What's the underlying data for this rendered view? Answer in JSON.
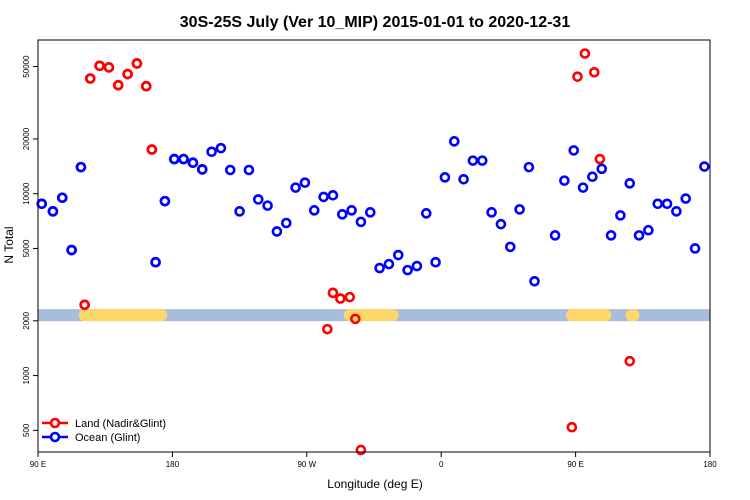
{
  "chart_data": {
    "type": "scatter",
    "title": "30S-25S July (Ver 10_MIP)   2015-01-01 to 2020-12-31",
    "xlabel": "Longitude (deg E)",
    "ylabel": "N Total",
    "x_ticks": [
      "90 E",
      "180",
      "90 W",
      "0",
      "90 E",
      "180"
    ],
    "y_scale": "log",
    "y_ticks": [
      500,
      1000,
      2000,
      5000,
      10000,
      20000,
      50000
    ],
    "ylim": [
      380,
      70000
    ],
    "legend": {
      "position": "bottom-left",
      "entries": [
        {
          "label": "Land (Nadir&Glint)",
          "color": "#ff0000"
        },
        {
          "label": "Ocean (Glint)",
          "color": "#0000ff"
        }
      ]
    },
    "series": [
      {
        "name": "Land (Nadir&Glint)",
        "color": "#ff0000",
        "points": [
          [
            115,
            2450
          ],
          [
            118,
            43000
          ],
          [
            123,
            50500
          ],
          [
            128,
            49500
          ],
          [
            133,
            39500
          ],
          [
            138,
            45500
          ],
          [
            143,
            52000
          ],
          [
            148,
            39000
          ],
          [
            151,
            17500
          ],
          [
            -115,
            1800
          ],
          [
            -112,
            2850
          ],
          [
            -108,
            2650
          ],
          [
            -103,
            2700
          ],
          [
            -100,
            2050
          ],
          [
            -97,
            390
          ],
          [
            16,
            520
          ],
          [
            19,
            44000
          ],
          [
            23,
            59000
          ],
          [
            28,
            46500
          ],
          [
            31,
            15500
          ],
          [
            47,
            1200
          ],
          [
            115,
            2450
          ],
          [
            118,
            43000
          ],
          [
            123,
            50500
          ],
          [
            128,
            49500
          ],
          [
            133,
            39500
          ],
          [
            138,
            45500
          ],
          [
            143,
            52000
          ],
          [
            148,
            39000
          ],
          [
            151,
            17500
          ]
        ]
      },
      {
        "name": "Ocean (Glint)",
        "color": "#0000ff",
        "points": [
          [
            92,
            8800
          ],
          [
            98,
            8000
          ],
          [
            103,
            9500
          ],
          [
            108,
            4900
          ],
          [
            113,
            14000
          ],
          [
            153,
            4200
          ],
          [
            158,
            9100
          ],
          [
            163,
            15500
          ],
          [
            168,
            15500
          ],
          [
            173,
            14800
          ],
          [
            178,
            13600
          ],
          [
            -177,
            17000
          ],
          [
            -172,
            17800
          ],
          [
            -167,
            13500
          ],
          [
            -162,
            8000
          ],
          [
            -157,
            13500
          ],
          [
            -152,
            9300
          ],
          [
            -147,
            8600
          ],
          [
            -142,
            6200
          ],
          [
            -137,
            6900
          ],
          [
            -132,
            10800
          ],
          [
            -127,
            11500
          ],
          [
            -122,
            8100
          ],
          [
            -117,
            9600
          ],
          [
            -112,
            9800
          ],
          [
            -107,
            7700
          ],
          [
            -102,
            8100
          ],
          [
            -97,
            7000
          ],
          [
            -92,
            7900
          ],
          [
            -87,
            3900
          ],
          [
            -82,
            4100
          ],
          [
            -77,
            4600
          ],
          [
            -72,
            3800
          ],
          [
            -67,
            4000
          ],
          [
            -62,
            7800
          ],
          [
            -57,
            4200
          ],
          [
            -52,
            12300
          ],
          [
            -47,
            19400
          ],
          [
            -42,
            12000
          ],
          [
            -37,
            15200
          ],
          [
            -32,
            15200
          ],
          [
            -27,
            7900
          ],
          [
            -22,
            6800
          ],
          [
            -17,
            5100
          ],
          [
            -12,
            8200
          ],
          [
            -7,
            14000
          ],
          [
            -4,
            3300
          ],
          [
            7,
            5900
          ],
          [
            12,
            11800
          ],
          [
            17,
            17300
          ],
          [
            22,
            10800
          ],
          [
            27,
            12400
          ],
          [
            32,
            13700
          ],
          [
            37,
            5900
          ],
          [
            42,
            7600
          ],
          [
            47,
            11400
          ],
          [
            52,
            5900
          ],
          [
            57,
            6300
          ],
          [
            62,
            8800
          ],
          [
            67,
            8800
          ],
          [
            72,
            8000
          ],
          [
            77,
            9400
          ],
          [
            82,
            5000
          ],
          [
            87,
            14100
          ],
          [
            92,
            8800
          ],
          [
            98,
            8000
          ],
          [
            103,
            9500
          ],
          [
            108,
            4900
          ],
          [
            113,
            14000
          ],
          [
            153,
            4200
          ],
          [
            158,
            9100
          ],
          [
            163,
            15500
          ],
          [
            168,
            15500
          ],
          [
            173,
            14800
          ],
          [
            178,
            13600
          ]
        ]
      }
    ],
    "surface_bar": {
      "y_value": 2150,
      "ocean_color": "#a6bddb",
      "land_color": "#fed76a",
      "land_ranges": [
        [
          116,
          156
        ],
        [
          -103,
          -80
        ],
        [
          16,
          34
        ],
        [
          48,
          49
        ],
        [
          115,
          155
        ]
      ]
    }
  }
}
